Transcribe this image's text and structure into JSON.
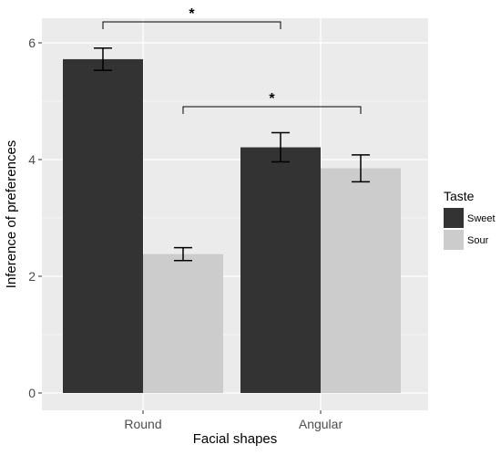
{
  "chart_data": {
    "type": "bar",
    "title": "",
    "xlabel": "Facial shapes",
    "ylabel": "Inference of preferences",
    "categories": [
      "Round",
      "Angular"
    ],
    "ylim": [
      0,
      6.3
    ],
    "yticks": [
      0,
      2,
      4,
      6
    ],
    "grid": true,
    "legend": {
      "title": "Taste",
      "placement": "right"
    },
    "series": [
      {
        "name": "Sweet",
        "color": "#333333",
        "values": [
          5.72,
          4.21
        ],
        "error": [
          0.19,
          0.25
        ]
      },
      {
        "name": "Sour",
        "color": "#cccccc",
        "values": [
          2.38,
          3.85
        ],
        "error": [
          0.11,
          0.23
        ]
      }
    ],
    "annotations": [
      {
        "label": "*",
        "from": {
          "category": "Round",
          "series": "Sweet"
        },
        "to": {
          "category": "Angular",
          "series": "Sweet"
        }
      },
      {
        "label": "*",
        "from": {
          "category": "Round",
          "series": "Sour"
        },
        "to": {
          "category": "Angular",
          "series": "Sour"
        }
      }
    ],
    "panel_background": "#ebebeb",
    "gridline_color": "#ffffff"
  }
}
